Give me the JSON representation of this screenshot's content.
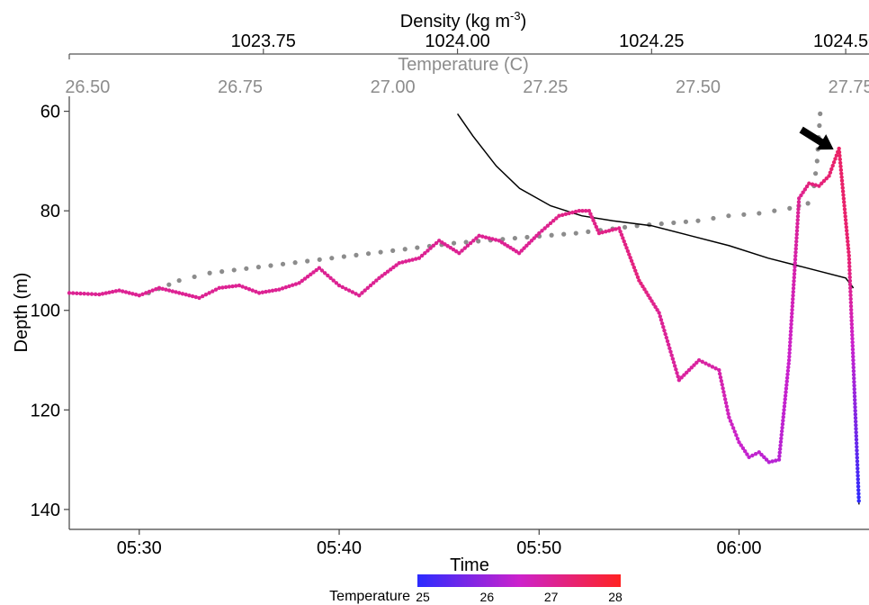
{
  "chart_data": {
    "type": "line",
    "ylabel": "Depth (m)",
    "xlabel": "Time",
    "top_axis_density_label_main": "Density (kg m",
    "top_axis_density_label_sup": "-3",
    "top_axis_density_label_end": ")",
    "top_axis_temperature_label": "Temperature (C)",
    "ylim": [
      57,
      144
    ],
    "y_inverted": true,
    "y_ticks": [
      60,
      80,
      100,
      120,
      140
    ],
    "y_tick_labels": [
      "60",
      "80",
      "100",
      "120",
      "140"
    ],
    "time_axis": {
      "range_min": [
        -3.5,
        36.5
      ],
      "ticks_min": [
        0,
        10,
        20,
        30
      ],
      "tick_labels": [
        "05:30",
        "05:40",
        "05:50",
        "06:00"
      ]
    },
    "temperature_axis": {
      "range": [
        26.47,
        27.78
      ],
      "ticks": [
        26.5,
        26.75,
        27.0,
        27.25,
        27.5,
        27.75
      ],
      "tick_labels": [
        "26.50",
        "26.75",
        "27.00",
        "27.25",
        "27.50",
        "27.75"
      ],
      "color": "#8c8c8c"
    },
    "density_axis": {
      "range": [
        1023.5,
        1024.53
      ],
      "ticks": [
        1023.75,
        1024.0,
        1024.25,
        1024.5
      ],
      "tick_labels": [
        "1023.75",
        "1024.00",
        "1024.25",
        "1024.50"
      ]
    },
    "colorbar": {
      "title": "Temperature",
      "range": [
        25,
        28
      ],
      "ticks": [
        25,
        26,
        27,
        28
      ],
      "tick_labels": [
        "25",
        "26",
        "27",
        "28"
      ],
      "colors": [
        "#2b2bff",
        "#cc22cc",
        "#ff2222"
      ]
    },
    "series": [
      {
        "kind": "depth_vs_time",
        "points_time_min": [
          -3.5,
          -2,
          -1,
          0,
          1,
          2,
          3,
          4,
          5,
          6,
          7,
          8,
          9,
          10,
          11,
          12,
          13,
          14,
          15,
          16,
          17,
          18,
          19,
          20,
          21,
          22,
          22.5,
          23,
          24,
          25,
          26,
          27,
          28,
          29,
          29.5,
          30,
          30.5,
          31,
          31.5,
          32,
          32.5,
          33,
          33.5,
          34,
          34.5,
          35,
          35.5,
          36
        ],
        "depth_m": [
          96.5,
          96.8,
          96.0,
          97.0,
          95.5,
          96.5,
          97.5,
          95.5,
          95.0,
          96.5,
          95.8,
          94.5,
          91.5,
          95.0,
          97.0,
          93.5,
          90.5,
          89.5,
          86.0,
          88.5,
          85.0,
          86.0,
          88.5,
          84.5,
          81.0,
          80.0,
          80.0,
          84.5,
          83.5,
          94.0,
          100.5,
          114.0,
          110.0,
          112.0,
          121.5,
          126.5,
          129.5,
          128.5,
          130.5,
          130.0,
          110.0,
          77.5,
          74.5,
          75.0,
          73.0,
          67.5,
          89.0,
          139.0
        ],
        "temperature_c": [
          27.0,
          27.0,
          27.0,
          27.0,
          27.0,
          27.0,
          27.0,
          27.0,
          27.0,
          27.0,
          27.0,
          27.0,
          27.0,
          27.0,
          27.0,
          27.0,
          27.0,
          27.0,
          27.0,
          27.0,
          27.0,
          27.0,
          27.0,
          27.0,
          27.1,
          27.1,
          27.1,
          27.1,
          27.1,
          27.2,
          27.0,
          26.9,
          26.9,
          26.8,
          26.6,
          26.5,
          26.4,
          26.4,
          26.3,
          26.3,
          26.5,
          27.0,
          27.2,
          27.2,
          27.3,
          27.4,
          27.3,
          25.0
        ]
      },
      {
        "kind": "depth_vs_temperature",
        "color": "#8c8c8c",
        "temperature_c": [
          26.6,
          26.65,
          26.7,
          26.8,
          26.9,
          27.0,
          27.1,
          27.2,
          27.3,
          27.4,
          27.5,
          27.55,
          27.6,
          27.65,
          27.68,
          27.69,
          27.695,
          27.7
        ],
        "depth_m": [
          96.5,
          94.0,
          92.5,
          91.0,
          89.5,
          88.0,
          86.5,
          85.5,
          84.5,
          83.0,
          82.0,
          81.0,
          80.5,
          79.5,
          78.5,
          75.0,
          70.0,
          60.5
        ]
      },
      {
        "kind": "depth_vs_density",
        "color": "#000000",
        "density_kg_m3": [
          1024.0,
          1024.02,
          1024.05,
          1024.08,
          1024.12,
          1024.16,
          1024.2,
          1024.25,
          1024.3,
          1024.35,
          1024.4,
          1024.45,
          1024.5,
          1024.51
        ],
        "depth_m": [
          60.5,
          65.0,
          71.0,
          75.5,
          79.0,
          81.0,
          82.0,
          83.0,
          85.0,
          87.0,
          89.5,
          91.5,
          93.5,
          95.5
        ]
      }
    ],
    "annotation": {
      "type": "arrow",
      "points_at_time_min": 35,
      "points_at_depth_m": 67.5
    }
  }
}
